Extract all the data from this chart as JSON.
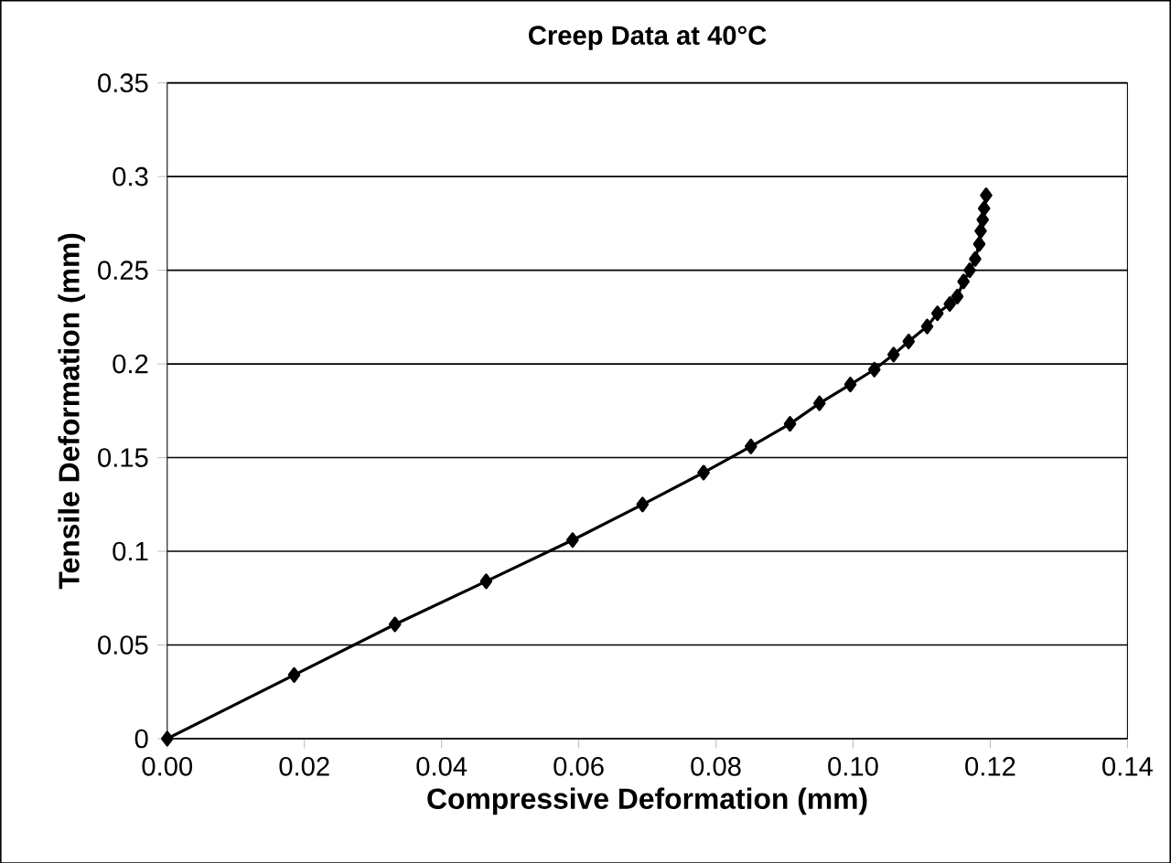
{
  "chart_data": {
    "type": "line",
    "title": "Creep Data at 40°C",
    "xlabel": "Compressive Deformation (mm)",
    "ylabel": "Tensile Deformation (mm)",
    "xlim": [
      0,
      0.14
    ],
    "xticks": [
      {
        "value": 0,
        "label": "0.00"
      },
      {
        "value": 0.02,
        "label": "0.02"
      },
      {
        "value": 0.04,
        "label": "0.04"
      },
      {
        "value": 0.06,
        "label": "0.06"
      },
      {
        "value": 0.08,
        "label": "0.08"
      },
      {
        "value": 0.1,
        "label": "0.10"
      },
      {
        "value": 0.12,
        "label": "0.12"
      },
      {
        "value": 0.14,
        "label": "0.14"
      }
    ],
    "ylim": [
      0,
      0.35
    ],
    "yticks": [
      0,
      0.05,
      0.1,
      0.15,
      0.2,
      0.25,
      0.3,
      0.35
    ],
    "grid": "y",
    "marker": "diamond",
    "line_style": "solid",
    "series": [
      {
        "color": "#000000",
        "x": [
          0,
          0.0185,
          0.0332,
          0.0465,
          0.0591,
          0.0693,
          0.0782,
          0.0851,
          0.0908,
          0.0951,
          0.0996,
          0.1031,
          0.1059,
          0.1081,
          0.1108,
          0.1123,
          0.1141,
          0.1152,
          0.1161,
          0.117,
          0.1178,
          0.1184,
          0.1186,
          0.1189,
          0.1191,
          0.1194
        ],
        "values": [
          0,
          0.034,
          0.061,
          0.084,
          0.106,
          0.125,
          0.142,
          0.156,
          0.168,
          0.179,
          0.189,
          0.197,
          0.205,
          0.212,
          0.22,
          0.227,
          0.232,
          0.236,
          0.244,
          0.25,
          0.256,
          0.264,
          0.271,
          0.277,
          0.283,
          0.29
        ]
      }
    ]
  }
}
